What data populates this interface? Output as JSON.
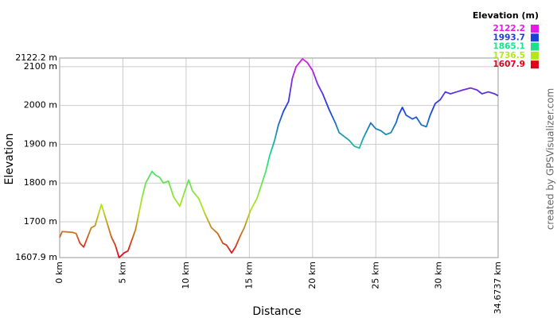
{
  "chart_data": {
    "type": "line",
    "xlabel": "Distance",
    "ylabel": "Elevation",
    "credit": "created by GPSVisualizer.com",
    "x": [
      0,
      0.2,
      1.0,
      1.3,
      1.6,
      1.9,
      2.5,
      2.8,
      3.3,
      4.1,
      4.4,
      4.7,
      5.1,
      5.4,
      6.0,
      6.5,
      6.8,
      7.3,
      7.6,
      7.9,
      8.2,
      8.6,
      9.0,
      9.5,
      9.8,
      10.2,
      10.5,
      11.0,
      11.5,
      12.0,
      12.5,
      12.9,
      13.2,
      13.6,
      13.9,
      14.3,
      14.6,
      15.1,
      15.6,
      16.0,
      16.3,
      16.6,
      17.0,
      17.3,
      17.7,
      18.1,
      18.4,
      18.7,
      19.2,
      19.6,
      20.0,
      20.4,
      20.8,
      21.3,
      21.8,
      22.1,
      22.5,
      22.9,
      23.3,
      23.7,
      24.0,
      24.3,
      24.6,
      25.0,
      25.4,
      25.8,
      26.2,
      26.6,
      26.8,
      27.1,
      27.4,
      27.9,
      28.2,
      28.6,
      29.0,
      29.3,
      29.7,
      30.1,
      30.5,
      30.9,
      31.4,
      31.9,
      32.5,
      33.0,
      33.4,
      33.9,
      34.4,
      34.6737
    ],
    "values": [
      1660,
      1675,
      1673,
      1670,
      1645,
      1635,
      1685,
      1690,
      1745,
      1660,
      1640,
      1607.9,
      1620,
      1625,
      1680,
      1760,
      1800,
      1830,
      1820,
      1815,
      1800,
      1805,
      1765,
      1740,
      1770,
      1808,
      1780,
      1760,
      1720,
      1685,
      1670,
      1645,
      1640,
      1620,
      1635,
      1665,
      1685,
      1730,
      1760,
      1800,
      1830,
      1870,
      1910,
      1950,
      1985,
      2010,
      2070,
      2100,
      2120,
      2110,
      2090,
      2055,
      2030,
      1990,
      1955,
      1930,
      1920,
      1910,
      1895,
      1890,
      1915,
      1935,
      1955,
      1940,
      1935,
      1925,
      1930,
      1955,
      1975,
      1995,
      1975,
      1965,
      1970,
      1950,
      1945,
      1975,
      2005,
      2015,
      2035,
      2030,
      2035,
      2040,
      2045,
      2040,
      2030,
      2035,
      2030,
      2025
    ],
    "xlim": [
      0,
      34.6737
    ],
    "ylim": [
      1607.9,
      2122.2
    ],
    "xticks": [
      {
        "value": 0,
        "label": "0 km"
      },
      {
        "value": 5,
        "label": "5 km"
      },
      {
        "value": 10,
        "label": "10 km"
      },
      {
        "value": 15,
        "label": "15 km"
      },
      {
        "value": 20,
        "label": "20 km"
      },
      {
        "value": 25,
        "label": "25 km"
      },
      {
        "value": 30,
        "label": "30 km"
      },
      {
        "value": 34.6737,
        "label": "34.6737 km"
      }
    ],
    "yticks": [
      {
        "value": 1607.9,
        "label": "1607.9 m"
      },
      {
        "value": 1700,
        "label": "1700 m"
      },
      {
        "value": 1800,
        "label": "1800 m"
      },
      {
        "value": 1900,
        "label": "1900 m"
      },
      {
        "value": 2000,
        "label": "2000 m"
      },
      {
        "value": 2100,
        "label": "2100 m"
      },
      {
        "value": 2122.2,
        "label": "2122.2 m"
      }
    ],
    "grid": true,
    "color_scale": {
      "title": "Elevation (m)",
      "stops": [
        {
          "value": 2122.2,
          "color": "#e619e6"
        },
        {
          "value": 1993.7,
          "color": "#1e3ce0"
        },
        {
          "value": 1865.1,
          "color": "#1ee08a"
        },
        {
          "value": 1736.5,
          "color": "#b4e61e"
        },
        {
          "value": 1607.9,
          "color": "#e0001e"
        }
      ]
    }
  }
}
